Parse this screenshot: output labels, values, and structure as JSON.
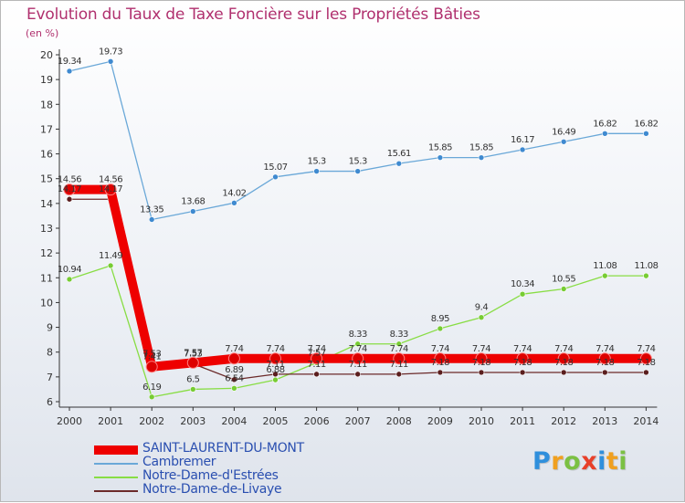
{
  "chart_data": {
    "type": "line",
    "title": "Evolution du Taux de Taxe Foncière sur les Propriétés Bâties",
    "unit_label": "(en %)",
    "xlabel": "",
    "ylabel": "(en %)",
    "x": [
      "2000",
      "2001",
      "2002",
      "2003",
      "2004",
      "2005",
      "2006",
      "2007",
      "2008",
      "2009",
      "2010",
      "2011",
      "2012",
      "2013",
      "2014"
    ],
    "ylim": [
      6,
      20
    ],
    "yticks": [
      "6",
      "7",
      "8",
      "9",
      "10",
      "11",
      "12",
      "13",
      "14",
      "15",
      "16",
      "17",
      "18",
      "19",
      "20"
    ],
    "grid": false,
    "legend_position": "bottom-left",
    "series": [
      {
        "name": "Notre-Dame-d'Estrées",
        "color": "#88dd44",
        "marker": "#77cc33",
        "values": [
          10.94,
          11.49,
          6.19,
          6.5,
          6.54,
          6.88,
          7.57,
          8.33,
          8.33,
          8.95,
          9.4,
          10.34,
          10.55,
          11.08,
          11.08
        ],
        "labels": [
          "10.94",
          "11.49",
          "6.19",
          "6.5",
          "6.54",
          "6.88",
          "7.57",
          "8.33",
          "8.33",
          "8.95",
          "9.4",
          "10.34",
          "10.55",
          "11.08",
          "11.08"
        ]
      },
      {
        "name": "Cambremer",
        "color": "#6aa8d8",
        "marker": "#3f8ad0",
        "values": [
          19.34,
          19.73,
          13.35,
          13.68,
          14.02,
          15.07,
          15.3,
          15.3,
          15.61,
          15.85,
          15.85,
          16.17,
          16.49,
          16.82,
          16.82
        ],
        "labels": [
          "19.34",
          "19.73",
          "13.35",
          "13.68",
          "14.02",
          "15.07",
          "15.3",
          "15.3",
          "15.61",
          "15.85",
          "15.85",
          "16.17",
          "16.49",
          "16.82",
          "16.82"
        ]
      },
      {
        "name": "Notre-Dame-de-Livaye",
        "color": "#6b2a2a",
        "marker": "#5a1e1e",
        "values": [
          14.17,
          14.17,
          7.53,
          7.53,
          6.89,
          7.11,
          7.11,
          7.11,
          7.11,
          7.18,
          7.18,
          7.18,
          7.18,
          7.18,
          7.18
        ],
        "labels": [
          "14.17",
          "14.17",
          "7.53",
          "7.53",
          "6.89",
          "7.11",
          "7.11",
          "7.11",
          "7.11",
          "7.18",
          "7.18",
          "7.18",
          "7.18",
          "7.18",
          "7.18"
        ]
      },
      {
        "name": "SAINT-LAURENT-DU-MONT",
        "color": "#ee0000",
        "marker": "#dd0000",
        "values": [
          14.56,
          14.56,
          7.41,
          7.57,
          7.74,
          7.74,
          7.74,
          7.74,
          7.74,
          7.74,
          7.74,
          7.74,
          7.74,
          7.74,
          7.74
        ],
        "labels": [
          "14.56",
          "14.56",
          "7.41",
          "7.57",
          "7.74",
          "7.74",
          "7.74",
          "7.74",
          "7.74",
          "7.74",
          "7.74",
          "7.74",
          "7.74",
          "7.74",
          "7.74"
        ]
      }
    ],
    "legend": [
      {
        "name": "SAINT-LAURENT-DU-MONT",
        "color": "#ee0000"
      },
      {
        "name": "Cambremer",
        "color": "#6aa8d8"
      },
      {
        "name": "Notre-Dame-d'Estrées",
        "color": "#88dd44"
      },
      {
        "name": "Notre-Dame-de-Livaye",
        "color": "#6b2a2a"
      }
    ]
  },
  "branding": {
    "logo_letters": [
      "P",
      "r",
      "o",
      "x",
      "i",
      "t",
      "i"
    ],
    "logo_colors": [
      "#2f8fdc",
      "#f0a020",
      "#7bc043",
      "#e8402a",
      "#2f8fdc",
      "#f0a020",
      "#7bc043"
    ]
  }
}
